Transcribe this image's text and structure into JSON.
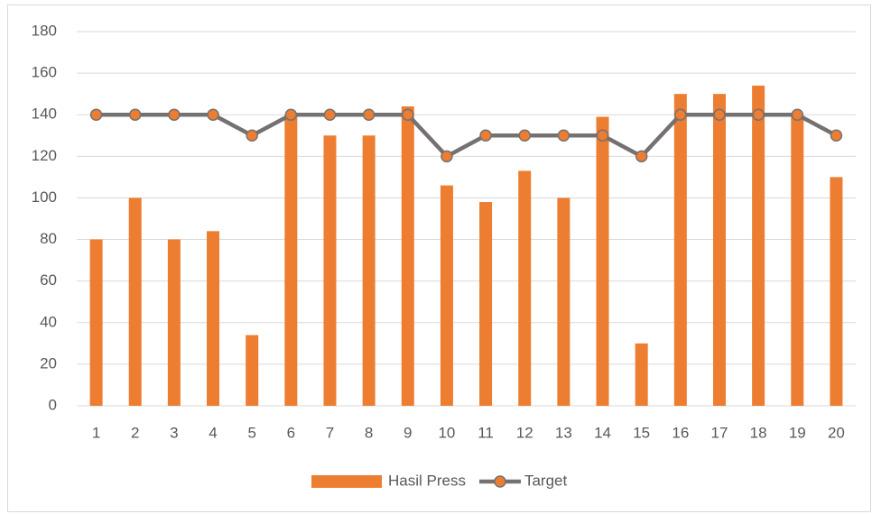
{
  "chart_data": {
    "type": "combo",
    "categories": [
      1,
      2,
      3,
      4,
      5,
      6,
      7,
      8,
      9,
      10,
      11,
      12,
      13,
      14,
      15,
      16,
      17,
      18,
      19,
      20
    ],
    "series": [
      {
        "name": "Hasil Press",
        "type": "bar",
        "color": "#ed7d31",
        "values": [
          80,
          100,
          80,
          84,
          34,
          140,
          130,
          130,
          144,
          106,
          98,
          113,
          100,
          139,
          30,
          150,
          150,
          154,
          140,
          110
        ]
      },
      {
        "name": "Target",
        "type": "line",
        "color": "#767171",
        "marker_color": "#ed7d31",
        "values": [
          140,
          140,
          140,
          140,
          130,
          140,
          140,
          140,
          140,
          120,
          130,
          130,
          130,
          130,
          120,
          140,
          140,
          140,
          140,
          130
        ]
      }
    ],
    "ylim": [
      0,
      180
    ],
    "yticks": [
      0,
      20,
      40,
      60,
      80,
      100,
      120,
      140,
      160,
      180
    ],
    "grid": true,
    "legend": "bottom"
  }
}
